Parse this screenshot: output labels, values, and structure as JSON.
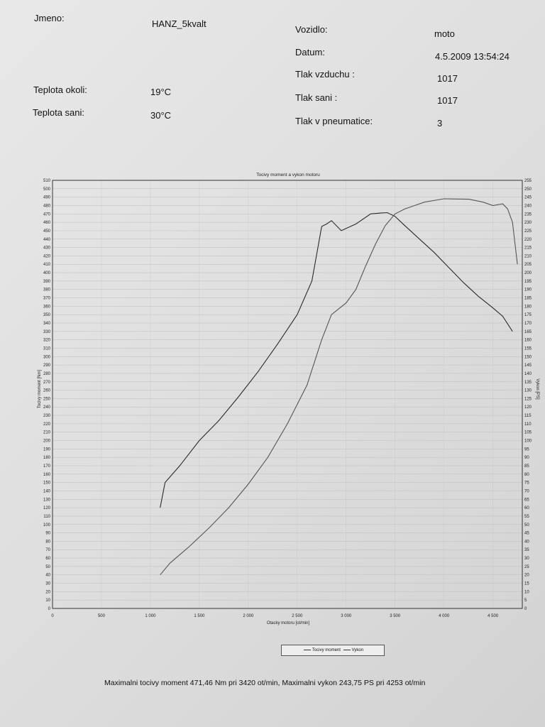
{
  "header": {
    "name_label": "Jmeno:",
    "name_value": "HANZ_5kvalt",
    "vehicle_label": "Vozidlo:",
    "vehicle_value": "moto",
    "date_label": "Datum:",
    "date_value": "4.5.2009 13:54:24",
    "air_pressure_label": "Tlak vzduchu :",
    "air_pressure_value": "1017",
    "ambient_temp_label": "Teplota okoli:",
    "ambient_temp_value": "19°C",
    "intake_pressure_label": "Tlak sani :",
    "intake_pressure_value": "1017",
    "intake_temp_label": "Teplota sani:",
    "intake_temp_value": "30°C",
    "tire_pressure_label": "Tlak v pneumatice:",
    "tire_pressure_value": "3"
  },
  "footer": {
    "summary": "Maximalni tocivy moment 471,46 Nm pri 3420 ot/min,  Maximalni vykon 243,75 PS pri 4253 ot/min"
  },
  "chart_data": {
    "type": "line",
    "title": "Tocivy moment a vykon motoru",
    "xlabel": "Otacky motoru [ot/min]",
    "ylabel": "Tocivy moment [Nm]",
    "y2label": "Vykon [PS]",
    "xlim": [
      0,
      4800
    ],
    "ylim": [
      0,
      510
    ],
    "y2lim": [
      0,
      255
    ],
    "x_ticks": [
      0,
      500,
      1000,
      1500,
      2000,
      2500,
      3000,
      3500,
      4000,
      4500
    ],
    "x_tick_labels": [
      "0",
      "500",
      "1 000",
      "1 500",
      "2 000",
      "2 500",
      "3 000",
      "3 500",
      "4 000",
      "4 500"
    ],
    "y_tick_step": 10,
    "y2_tick_step": 5,
    "grid": true,
    "legend_position": "bottom",
    "series": [
      {
        "name": "Tocivy moment",
        "axis": "left",
        "x": [
          1100,
          1150,
          1300,
          1500,
          1700,
          1900,
          2100,
          2300,
          2500,
          2650,
          2750,
          2800,
          2850,
          2950,
          3100,
          3250,
          3350,
          3420,
          3500,
          3600,
          3750,
          3900,
          4050,
          4200,
          4350,
          4500,
          4600,
          4700
        ],
        "values": [
          120,
          150,
          170,
          200,
          224,
          252,
          282,
          315,
          350,
          390,
          455,
          458,
          462,
          450,
          458,
          470,
          471,
          471.5,
          467,
          456,
          440,
          424,
          406,
          388,
          372,
          358,
          348,
          330
        ]
      },
      {
        "name": "Vykon",
        "axis": "right",
        "x": [
          1100,
          1200,
          1400,
          1600,
          1800,
          2000,
          2200,
          2400,
          2600,
          2750,
          2850,
          3000,
          3100,
          3200,
          3300,
          3400,
          3500,
          3600,
          3700,
          3800,
          4000,
          4253,
          4400,
          4500,
          4600,
          4650,
          4700,
          4750
        ],
        "values": [
          20,
          27,
          37,
          48,
          60,
          74,
          90,
          110,
          133,
          160,
          175,
          182,
          190,
          204,
          217,
          228,
          235,
          238,
          240,
          242,
          244,
          243.75,
          242,
          240,
          241,
          238,
          230,
          205
        ]
      }
    ]
  }
}
